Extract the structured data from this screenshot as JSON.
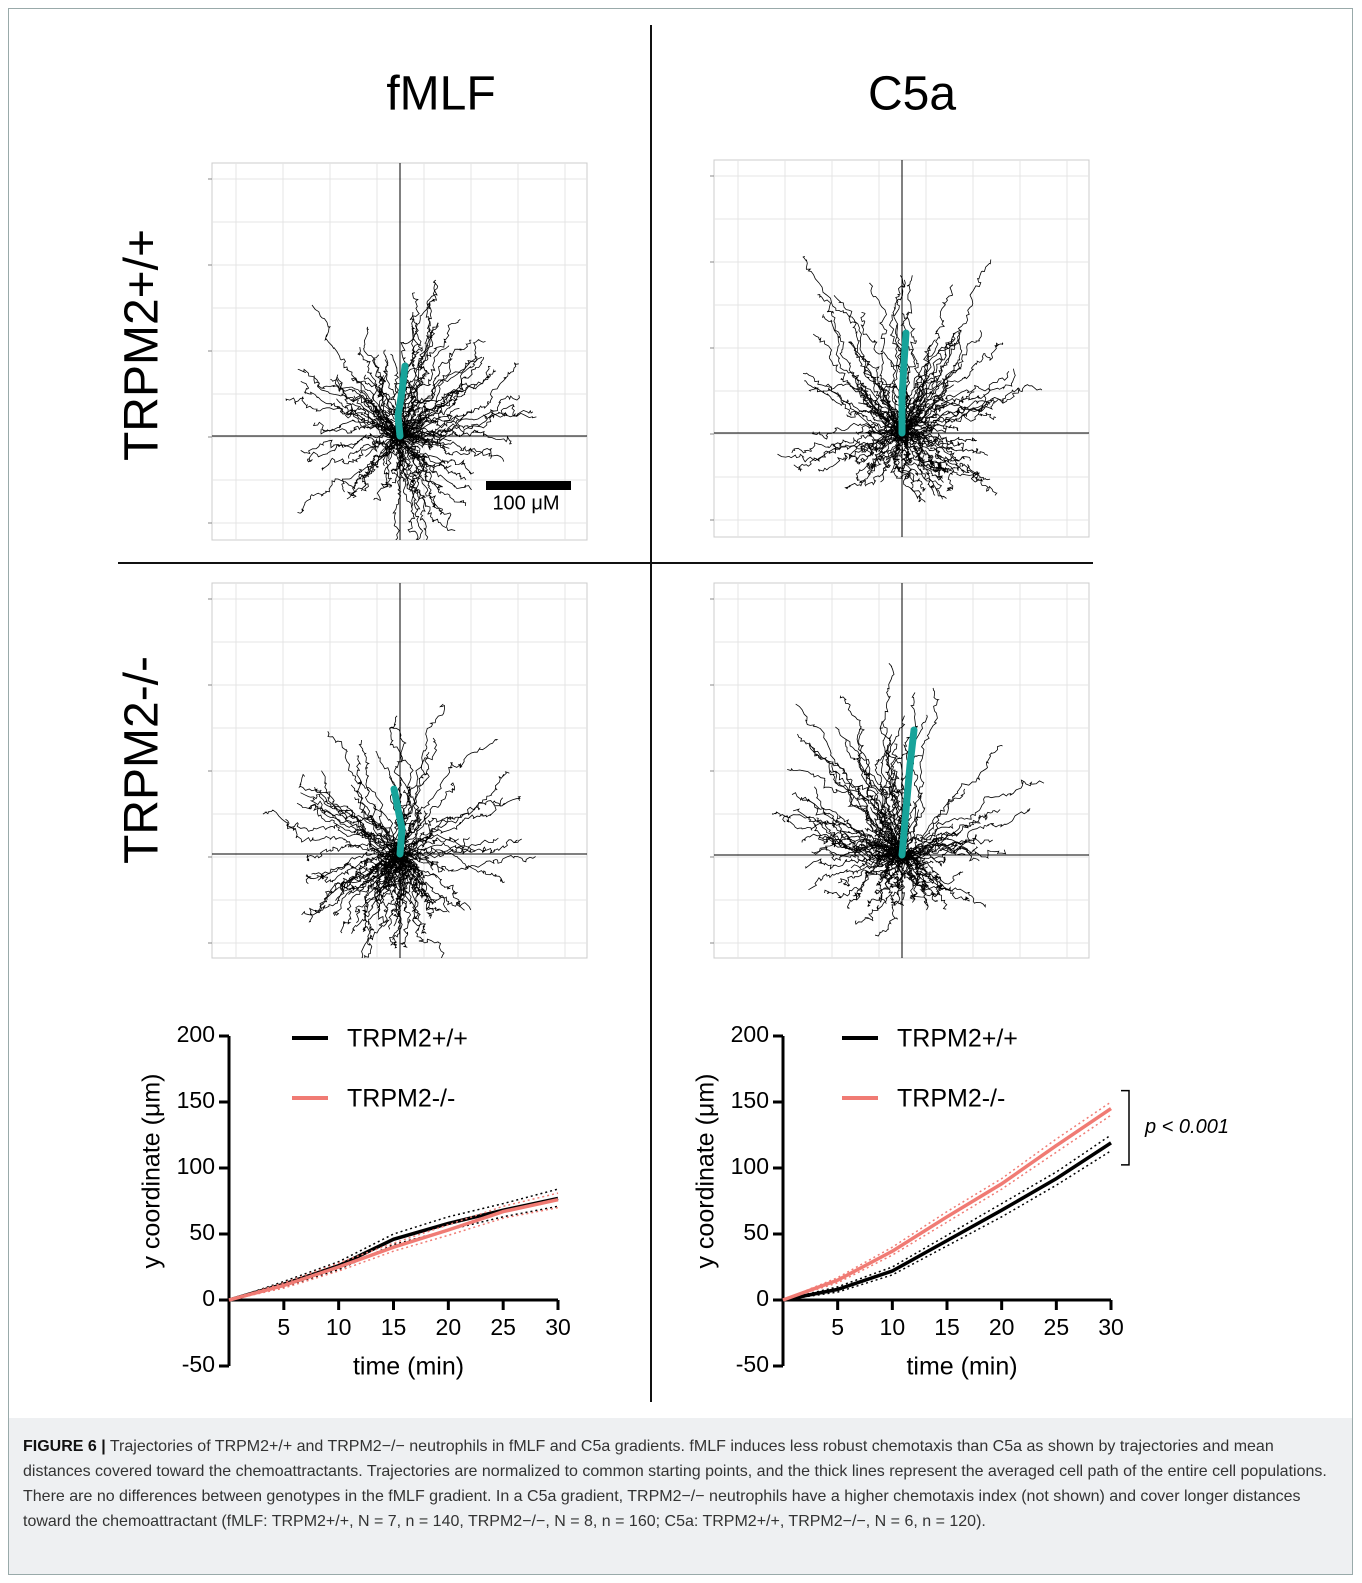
{
  "column_titles": [
    "fMLF",
    "C5a"
  ],
  "row_labels": [
    "TRPM2+/+",
    "TRPM2-/-"
  ],
  "scale_bar": "100 μM",
  "chart_data": [
    {
      "type": "line",
      "xlabel": "time (min)",
      "ylabel": "y coordinate (μm)",
      "x": [
        0,
        5,
        10,
        15,
        20,
        25,
        30
      ],
      "xlim": [
        0,
        30
      ],
      "xticks": [
        5,
        10,
        15,
        20,
        25,
        30
      ],
      "ylim": [
        -50,
        200
      ],
      "yticks": [
        -50,
        0,
        50,
        100,
        150,
        200
      ],
      "series": [
        {
          "name": "TRPM2+/+",
          "color": "#000000",
          "values": [
            0,
            12,
            26,
            46,
            58,
            68,
            77
          ],
          "lower": [
            0,
            10,
            23,
            42,
            53,
            63,
            71
          ],
          "upper": [
            0,
            14,
            29,
            50,
            63,
            73,
            84
          ]
        },
        {
          "name": "TRPM2-/-",
          "color": "#f07b74",
          "values": [
            0,
            11,
            25,
            40,
            53,
            67,
            76
          ],
          "lower": [
            0,
            9,
            22,
            37,
            49,
            62,
            70
          ],
          "upper": [
            0,
            13,
            28,
            43,
            57,
            71,
            81
          ]
        }
      ]
    },
    {
      "type": "line",
      "xlabel": "time (min)",
      "ylabel": "y coordinate (μm)",
      "x": [
        0,
        5,
        10,
        15,
        20,
        25,
        30
      ],
      "xlim": [
        0,
        30
      ],
      "xticks": [
        5,
        10,
        15,
        20,
        25,
        30
      ],
      "ylim": [
        -50,
        200
      ],
      "yticks": [
        -50,
        0,
        50,
        100,
        150,
        200
      ],
      "annotation": "p < 0.001",
      "series": [
        {
          "name": "TRPM2+/+",
          "color": "#000000",
          "values": [
            0,
            8,
            22,
            45,
            68,
            92,
            119
          ],
          "lower": [
            0,
            6,
            19,
            41,
            63,
            87,
            113
          ],
          "upper": [
            0,
            10,
            25,
            49,
            73,
            97,
            125
          ]
        },
        {
          "name": "TRPM2-/-",
          "color": "#f07b74",
          "values": [
            0,
            15,
            37,
            63,
            88,
            117,
            145
          ],
          "lower": [
            0,
            13,
            34,
            59,
            84,
            112,
            140
          ],
          "upper": [
            0,
            17,
            40,
            67,
            92,
            122,
            150
          ]
        }
      ]
    }
  ],
  "caption": {
    "label": "FIGURE 6 |",
    "text": "Trajectories of TRPM2+/+ and TRPM2−/− neutrophils in fMLF and C5a gradients. fMLF induces less robust chemotaxis than C5a as shown by trajectories and mean distances covered toward the chemoattractants. Trajectories are normalized to common starting points, and the thick lines represent the averaged cell path of the entire cell populations. There are no differences between genotypes in the fMLF gradient. In a C5a gradient, TRPM2−/− neutrophils have a higher chemotaxis index (not shown) and cover longer distances toward the chemoattractant (fMLF: TRPM2+/+, N = 7, n = 140, TRPM2−/−, N = 8, n = 160; C5a: TRPM2+/+, TRPM2−/−, N = 6, n = 120)."
  }
}
